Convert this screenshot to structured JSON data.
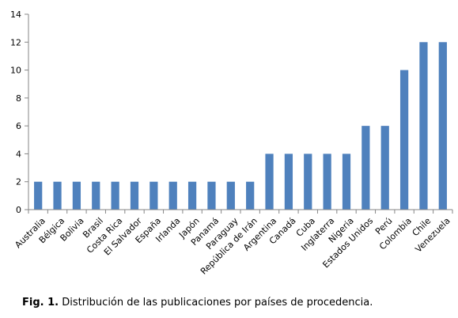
{
  "chart_data": {
    "type": "bar",
    "categories": [
      "Australia",
      "Bélgica",
      "Bolivia",
      "Brasil",
      "Costa Rica",
      "El Salvador",
      "España",
      "Irlanda",
      "Japón",
      "Panamá",
      "Paraguay",
      "República de Irán",
      "Argentina",
      "Canadá",
      "Cuba",
      "Inglaterra",
      "Nigeria",
      "Estados Unidos",
      "Perú",
      "Colombia",
      "Chile",
      "Venezuela"
    ],
    "values": [
      2,
      2,
      2,
      2,
      2,
      2,
      2,
      2,
      2,
      2,
      2,
      2,
      4,
      4,
      4,
      4,
      4,
      6,
      6,
      10,
      12,
      12
    ],
    "ylim": [
      0,
      14
    ],
    "yticks": [
      0,
      2,
      4,
      6,
      8,
      10,
      12,
      14
    ],
    "grid": false,
    "bar_color": "#4f81bd",
    "title": "",
    "xlabel": "",
    "ylabel": ""
  },
  "caption": {
    "label": "Fig. 1.",
    "text": " Distribución de las publicaciones por países de procedencia."
  }
}
